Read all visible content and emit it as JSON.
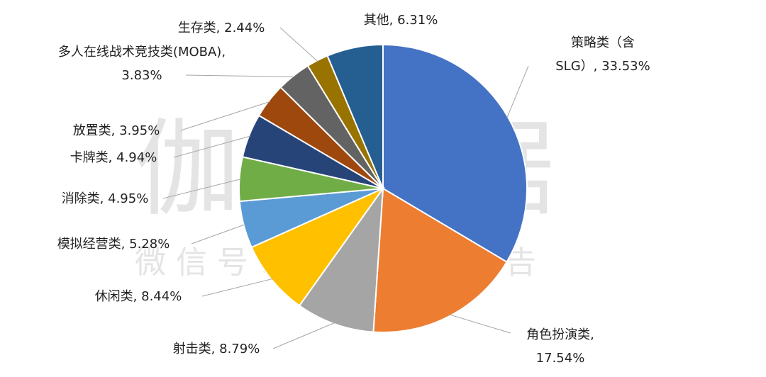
{
  "watermark": {
    "main": "伽马数据",
    "sub": "微信号：游戏产业报告"
  },
  "chart_data": {
    "type": "pie",
    "title": "",
    "slices": [
      {
        "label": "策略类（含SLG）",
        "value": 33.53,
        "display_value": "33.53%",
        "color": "#4472C4",
        "label_lines": [
          "策略类（含",
          "SLG）, 33.53%"
        ]
      },
      {
        "label": "角色扮演类",
        "value": 17.54,
        "display_value": "17.54%",
        "color": "#ED7D31",
        "label_lines": [
          "角色扮演类,",
          "17.54%"
        ]
      },
      {
        "label": "射击类",
        "value": 8.79,
        "display_value": "8.79%",
        "color": "#A5A5A5",
        "label_lines": [
          "射击类, 8.79%"
        ]
      },
      {
        "label": "休闲类",
        "value": 8.44,
        "display_value": "8.44%",
        "color": "#FFC000",
        "label_lines": [
          "休闲类, 8.44%"
        ]
      },
      {
        "label": "模拟经营类",
        "value": 5.28,
        "display_value": "5.28%",
        "color": "#5B9BD5",
        "label_lines": [
          "模拟经营类, 5.28%"
        ]
      },
      {
        "label": "消除类",
        "value": 4.95,
        "display_value": "4.95%",
        "color": "#70AD47",
        "label_lines": [
          "消除类, 4.95%"
        ]
      },
      {
        "label": "卡牌类",
        "value": 4.94,
        "display_value": "4.94%",
        "color": "#264478",
        "label_lines": [
          "卡牌类, 4.94%"
        ]
      },
      {
        "label": "放置类",
        "value": 3.95,
        "display_value": "3.95%",
        "color": "#9E480E",
        "label_lines": [
          "放置类, 3.95%"
        ]
      },
      {
        "label": "多人在线战术竞技类(MOBA)",
        "value": 3.83,
        "display_value": "3.83%",
        "color": "#636363",
        "label_lines": [
          "多人在线战术竞技类(MOBA),",
          "3.83%"
        ]
      },
      {
        "label": "生存类",
        "value": 2.44,
        "display_value": "2.44%",
        "color": "#997300",
        "label_lines": [
          "生存类, 2.44%"
        ]
      },
      {
        "label": "其他",
        "value": 6.31,
        "display_value": "6.31%",
        "color": "#255E91",
        "label_lines": [
          "其他, 6.31%"
        ]
      }
    ],
    "start_angle": "12 o'clock",
    "direction": "clockwise",
    "legend": "none"
  }
}
